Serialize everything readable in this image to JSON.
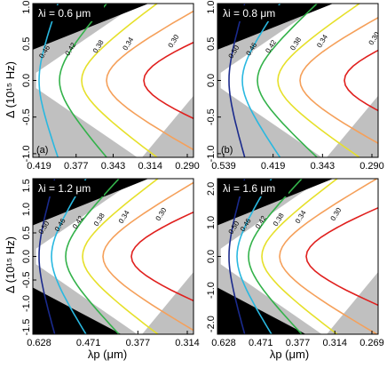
{
  "figure": {
    "y_axis_label": "Δ (10¹⁵ Hz)",
    "x_axis_label": "λp (μm)"
  },
  "chart_data": [
    {
      "type": "line",
      "panel_label": "(a)",
      "annotation": "λi = 0.6 μm",
      "x_ticks": [
        "0.419",
        "0.377",
        "0.343",
        "0.314",
        "0.290"
      ],
      "y_ticks": [
        "1.0",
        "0.5",
        "0.0",
        "-0.5",
        "-1.0"
      ],
      "ylim": [
        -1.05,
        1.05
      ],
      "series": [
        {
          "name": "0.46",
          "color": "#29b8e0",
          "values": []
        },
        {
          "name": "0.42",
          "color": "#33b24a",
          "values": []
        },
        {
          "name": "0.38",
          "color": "#e6e02a",
          "values": []
        },
        {
          "name": "0.34",
          "color": "#f5a05a",
          "values": []
        },
        {
          "name": "0.30",
          "color": "#e0201e",
          "values": []
        }
      ],
      "shaded_regions": "gray (top and bottom bands)",
      "grid": false
    },
    {
      "type": "line",
      "panel_label": "(b)",
      "annotation": "λi = 0.8 μm",
      "x_ticks": [
        "0.539",
        "0.419",
        "0.343",
        "0.290"
      ],
      "y_ticks": [
        "1.0",
        "0.5",
        "0.0",
        "-0.5",
        "-1.0"
      ],
      "ylim": [
        -1.05,
        1.05
      ],
      "series": [
        {
          "name": "0.50",
          "color": "#1a2a8c",
          "values": []
        },
        {
          "name": "0.46",
          "color": "#29b8e0",
          "values": []
        },
        {
          "name": "0.42",
          "color": "#33b24a",
          "values": []
        },
        {
          "name": "0.38",
          "color": "#e6e02a",
          "values": []
        },
        {
          "name": "0.34",
          "color": "#f5a05a",
          "values": []
        },
        {
          "name": "0.30",
          "color": "#e0201e",
          "values": []
        }
      ],
      "shaded_regions": "gray (top and bottom bands)",
      "grid": false
    },
    {
      "type": "line",
      "panel_label": "(c)",
      "annotation": "λi = 1.2 μm",
      "x_ticks": [
        "0.628",
        "0.471",
        "0.377",
        "0.314"
      ],
      "y_ticks": [
        "1.5",
        "1.0",
        "0.5",
        "0.0",
        "-0.5",
        "-1.0",
        "-1.5"
      ],
      "ylim": [
        -1.65,
        1.65
      ],
      "series": [
        {
          "name": "0.50",
          "color": "#1a2a8c",
          "values": []
        },
        {
          "name": "0.46",
          "color": "#29b8e0",
          "values": []
        },
        {
          "name": "0.42",
          "color": "#33b24a",
          "values": []
        },
        {
          "name": "0.38",
          "color": "#e6e02a",
          "values": []
        },
        {
          "name": "0.34",
          "color": "#f5a05a",
          "values": []
        },
        {
          "name": "0.30",
          "color": "#e0201e",
          "values": []
        }
      ],
      "shaded_regions": "gray (top and bottom bands), black corners",
      "grid": false
    },
    {
      "type": "line",
      "panel_label": "(d)",
      "annotation": "λi = 1.6 μm",
      "x_ticks": [
        "0.628",
        "0.471",
        "0.377",
        "0.314",
        "0.269"
      ],
      "y_ticks": [
        "2.0",
        "1.0",
        "0.0",
        "-1.0",
        "-2.0"
      ],
      "ylim": [
        -2.3,
        2.3
      ],
      "series": [
        {
          "name": "0.50",
          "color": "#1a2a8c",
          "values": []
        },
        {
          "name": "0.46",
          "color": "#29b8e0",
          "values": []
        },
        {
          "name": "0.42",
          "color": "#33b24a",
          "values": []
        },
        {
          "name": "0.38",
          "color": "#e6e02a",
          "values": []
        },
        {
          "name": "0.34",
          "color": "#f5a05a",
          "values": []
        },
        {
          "name": "0.30",
          "color": "#e0201e",
          "values": []
        }
      ],
      "shaded_regions": "gray (top and bottom bands), black corners",
      "grid": false
    }
  ]
}
